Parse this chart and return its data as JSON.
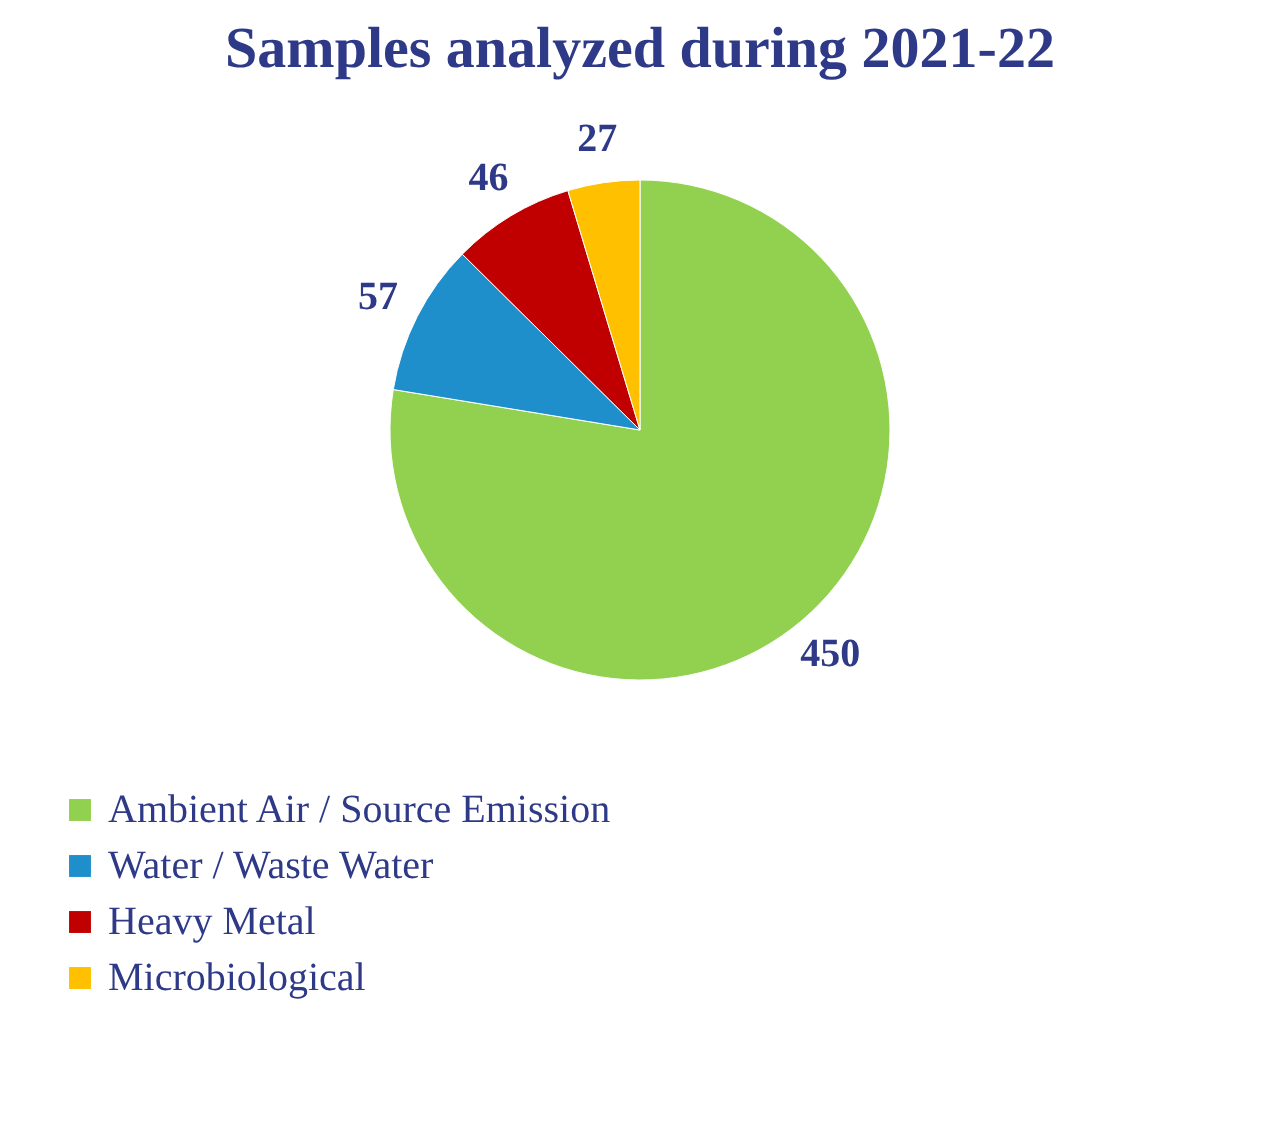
{
  "chart_data": {
    "type": "pie",
    "title": "Samples analyzed during 2021-22",
    "categories": [
      "Ambient Air / Source Emission",
      "Water / Waste Water",
      "Heavy Metal",
      "Microbiological"
    ],
    "values": [
      450,
      57,
      46,
      27
    ],
    "colors": [
      "#92d050",
      "#1f8fcc",
      "#c00000",
      "#ffc000"
    ],
    "data_labels": true,
    "legend": "bottom"
  }
}
